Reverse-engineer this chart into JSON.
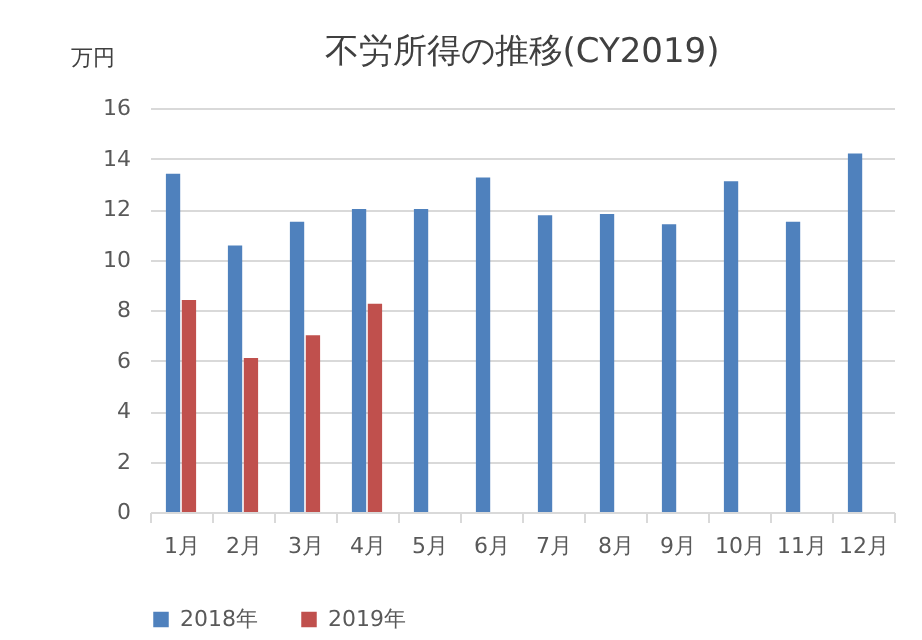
{
  "chart_data": {
    "type": "bar",
    "title": "不労所得の推移(CY2019)",
    "ylabel": "万円",
    "categories": [
      "1月",
      "2月",
      "3月",
      "4月",
      "5月",
      "6月",
      "7月",
      "8月",
      "9月",
      "10月",
      "11月",
      "12月"
    ],
    "series": [
      {
        "name": "2018年",
        "color": "#4f81bd",
        "values": [
          13.4,
          10.55,
          11.5,
          12.0,
          12.0,
          13.25,
          11.75,
          11.8,
          11.4,
          13.1,
          11.5,
          14.2
        ]
      },
      {
        "name": "2019年",
        "color": "#c0504d",
        "values": [
          8.4,
          6.1,
          7.0,
          8.25,
          null,
          null,
          null,
          null,
          null,
          null,
          null,
          null
        ]
      }
    ],
    "ylim": [
      0,
      16
    ],
    "yticks": [
      0,
      2,
      4,
      6,
      8,
      10,
      12,
      14,
      16
    ],
    "grid": "y",
    "legend": "bottom"
  }
}
